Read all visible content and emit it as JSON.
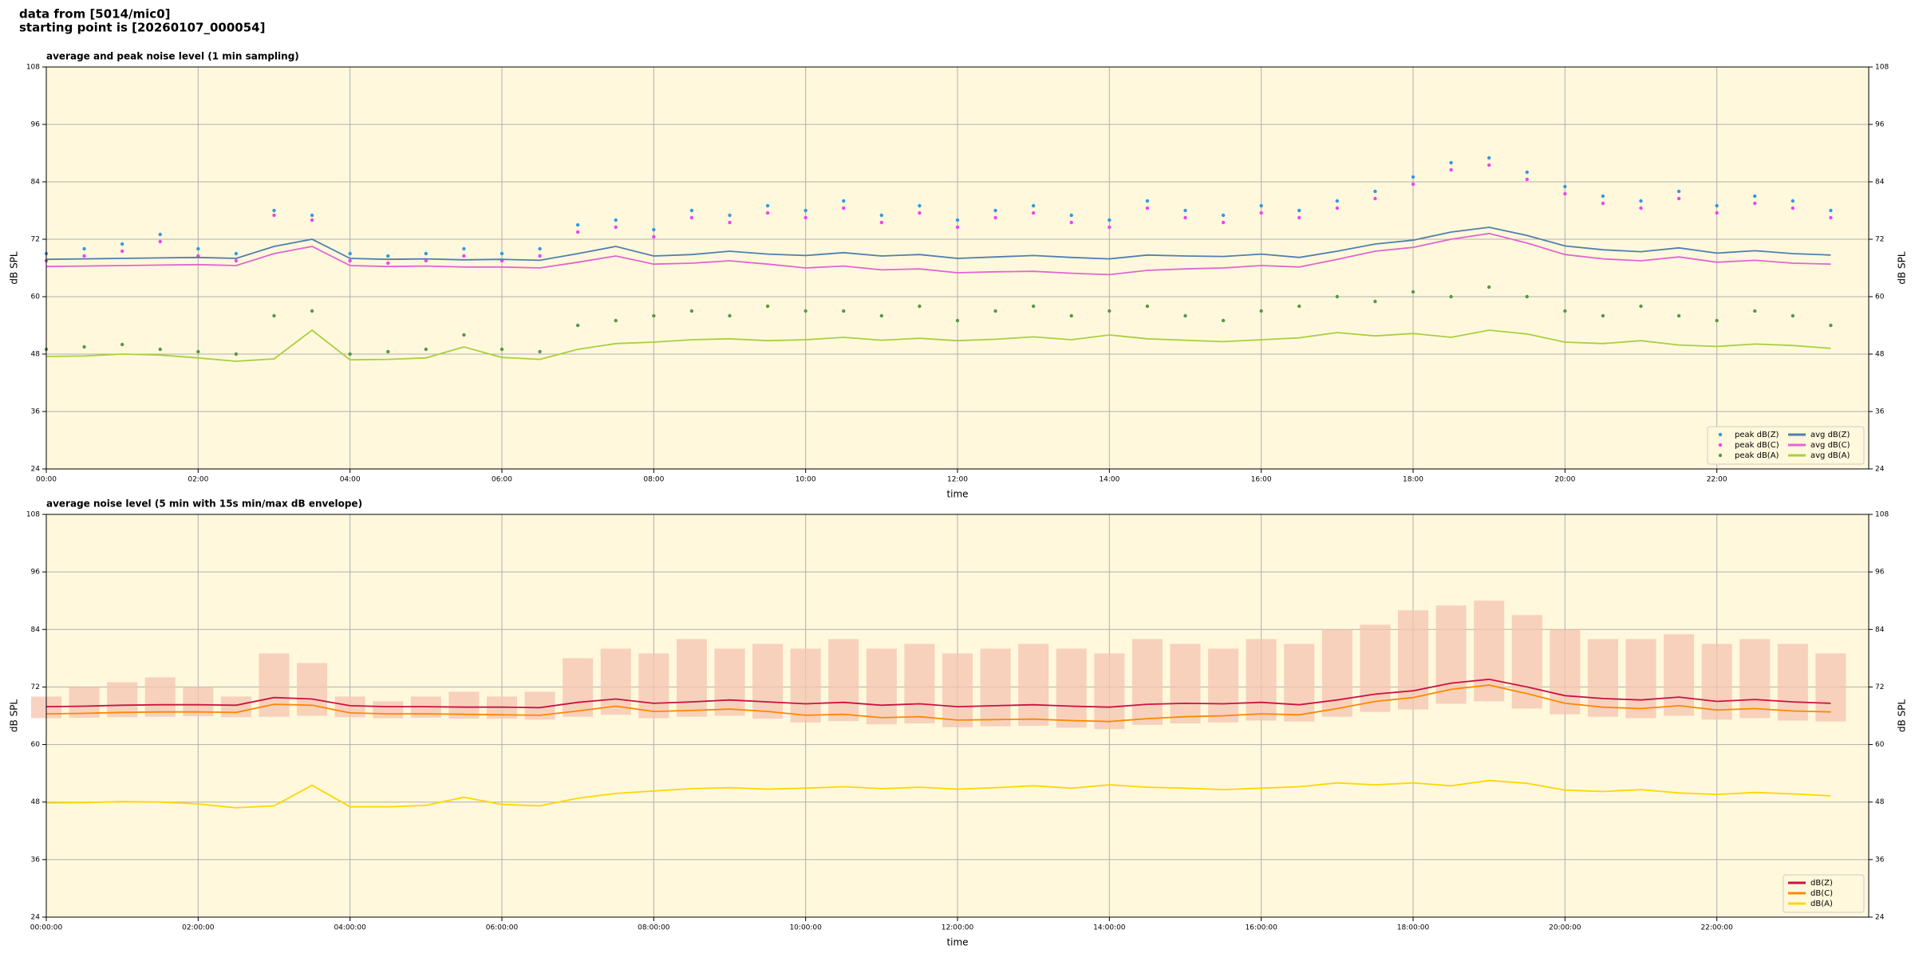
{
  "header": {
    "line1": "data from [5014/mic0]",
    "line2": "starting point is [20260107_000054]"
  },
  "chart_data": [
    {
      "type": "line",
      "title": "average and peak noise level (1 min sampling)",
      "x_label": "time",
      "y_label": "dB SPL",
      "background": "#fff8dc",
      "grid": true,
      "legend": "lower right",
      "xlim": [
        0,
        24
      ],
      "xticks": [
        {
          "value": 0,
          "label": "00:00"
        },
        {
          "value": 2,
          "label": "02:00"
        },
        {
          "value": 4,
          "label": "04:00"
        },
        {
          "value": 6,
          "label": "06:00"
        },
        {
          "value": 8,
          "label": "08:00"
        },
        {
          "value": 10,
          "label": "10:00"
        },
        {
          "value": 12,
          "label": "12:00"
        },
        {
          "value": 14,
          "label": "14:00"
        },
        {
          "value": 16,
          "label": "16:00"
        },
        {
          "value": 18,
          "label": "18:00"
        },
        {
          "value": 20,
          "label": "20:00"
        },
        {
          "value": 22,
          "label": "22:00"
        }
      ],
      "ylim": [
        24,
        108
      ],
      "yticks": [
        24,
        36,
        48,
        60,
        72,
        84,
        96,
        108
      ],
      "x": [
        0,
        0.5,
        1,
        1.5,
        2,
        2.5,
        3,
        3.5,
        4,
        4.5,
        5,
        5.5,
        6,
        6.5,
        7,
        7.5,
        8,
        8.5,
        9,
        9.5,
        10,
        10.5,
        11,
        11.5,
        12,
        12.5,
        13,
        13.5,
        14,
        14.5,
        15,
        15.5,
        16,
        16.5,
        17,
        17.5,
        18,
        18.5,
        19,
        19.5,
        20,
        20.5,
        21,
        21.5,
        22,
        22.5,
        23,
        23.5
      ],
      "series": [
        {
          "name": "peak dB(Z)",
          "type": "scatter",
          "color": "#3399dd",
          "values": [
            69,
            70,
            71,
            73,
            70,
            69,
            78,
            77,
            69,
            68.5,
            69,
            70,
            69,
            70,
            75,
            76,
            74,
            78,
            77,
            79,
            78,
            80,
            77,
            79,
            76,
            78,
            79,
            77,
            76,
            80,
            78,
            77,
            79,
            78,
            80,
            82,
            85,
            88,
            89,
            86,
            83,
            81,
            80,
            82,
            79,
            81,
            80,
            78
          ]
        },
        {
          "name": "peak dB(C)",
          "type": "scatter",
          "color": "#ee44ee",
          "values": [
            67.5,
            68.5,
            69.5,
            71.5,
            68.5,
            67.5,
            77,
            76,
            67.5,
            67,
            67.5,
            68.5,
            67.5,
            68.5,
            73.5,
            74.5,
            72.5,
            76.5,
            75.5,
            77.5,
            76.5,
            78.5,
            75.5,
            77.5,
            74.5,
            76.5,
            77.5,
            75.5,
            74.5,
            78.5,
            76.5,
            75.5,
            77.5,
            76.5,
            78.5,
            80.5,
            83.5,
            86.5,
            87.5,
            84.5,
            81.5,
            79.5,
            78.5,
            80.5,
            77.5,
            79.5,
            78.5,
            76.5
          ]
        },
        {
          "name": "peak dB(A)",
          "type": "scatter",
          "color": "#559944",
          "values": [
            49,
            49.5,
            50,
            49,
            48.5,
            48,
            56,
            57,
            48,
            48.5,
            49,
            52,
            49,
            48.5,
            54,
            55,
            56,
            57,
            56,
            58,
            57,
            57,
            56,
            58,
            55,
            57,
            58,
            56,
            57,
            58,
            56,
            55,
            57,
            58,
            60,
            59,
            61,
            60,
            62,
            60,
            57,
            56,
            58,
            56,
            55,
            57,
            56,
            54
          ]
        },
        {
          "name": "avg dB(Z)",
          "type": "line",
          "color": "#4f7fae",
          "values": [
            67.8,
            67.9,
            68.0,
            68.1,
            68.2,
            68.0,
            70.5,
            72.0,
            68.0,
            67.8,
            67.9,
            67.7,
            67.8,
            67.6,
            69.0,
            70.5,
            68.5,
            68.8,
            69.5,
            68.9,
            68.6,
            69.2,
            68.5,
            68.8,
            68.0,
            68.3,
            68.6,
            68.2,
            67.9,
            68.7,
            68.5,
            68.4,
            68.9,
            68.2,
            69.5,
            71.0,
            71.8,
            73.5,
            74.5,
            72.8,
            70.6,
            69.8,
            69.4,
            70.2,
            69.1,
            69.6,
            69.0,
            68.7
          ]
        },
        {
          "name": "avg dB(C)",
          "type": "line",
          "color": "#e066d0",
          "values": [
            66.3,
            66.4,
            66.5,
            66.6,
            66.7,
            66.5,
            69.0,
            70.5,
            66.5,
            66.3,
            66.4,
            66.2,
            66.2,
            66.0,
            67.2,
            68.5,
            66.8,
            67.0,
            67.5,
            66.8,
            66.0,
            66.4,
            65.6,
            65.8,
            65.0,
            65.2,
            65.3,
            64.9,
            64.6,
            65.5,
            65.8,
            66.0,
            66.5,
            66.2,
            67.8,
            69.5,
            70.3,
            72.0,
            73.2,
            71.2,
            68.8,
            67.9,
            67.5,
            68.3,
            67.2,
            67.6,
            67.0,
            66.8
          ]
        },
        {
          "name": "avg dB(A)",
          "type": "line",
          "color": "#a8d040",
          "values": [
            47.5,
            47.6,
            48.0,
            47.8,
            47.2,
            46.5,
            47.0,
            53.0,
            46.8,
            46.9,
            47.2,
            49.5,
            47.3,
            46.9,
            49.0,
            50.2,
            50.5,
            51.0,
            51.2,
            50.8,
            51.0,
            51.5,
            50.9,
            51.3,
            50.8,
            51.1,
            51.6,
            51.0,
            52.0,
            51.2,
            50.9,
            50.6,
            51.0,
            51.4,
            52.5,
            51.8,
            52.3,
            51.5,
            53.0,
            52.2,
            50.5,
            50.2,
            50.8,
            49.9,
            49.6,
            50.1,
            49.8,
            49.2
          ]
        }
      ]
    },
    {
      "type": "line",
      "title": "average noise level (5 min with 15s min/max dB envelope)",
      "x_label": "time",
      "y_label": "dB SPL",
      "background": "#fff8dc",
      "grid": true,
      "legend": "lower right",
      "xlim": [
        0,
        24
      ],
      "xticks": [
        {
          "value": 0,
          "label": "00:00:00"
        },
        {
          "value": 2,
          "label": "02:00:00"
        },
        {
          "value": 4,
          "label": "04:00:00"
        },
        {
          "value": 6,
          "label": "06:00:00"
        },
        {
          "value": 8,
          "label": "08:00:00"
        },
        {
          "value": 10,
          "label": "10:00:00"
        },
        {
          "value": 12,
          "label": "12:00:00"
        },
        {
          "value": 14,
          "label": "14:00:00"
        },
        {
          "value": 16,
          "label": "16:00:00"
        },
        {
          "value": 18,
          "label": "18:00:00"
        },
        {
          "value": 20,
          "label": "20:00:00"
        },
        {
          "value": 22,
          "label": "22:00:00"
        }
      ],
      "ylim": [
        24,
        108
      ],
      "yticks": [
        24,
        36,
        48,
        60,
        72,
        84,
        96,
        108
      ],
      "x": [
        0,
        0.5,
        1,
        1.5,
        2,
        2.5,
        3,
        3.5,
        4,
        4.5,
        5,
        5.5,
        6,
        6.5,
        7,
        7.5,
        8,
        8.5,
        9,
        9.5,
        10,
        10.5,
        11,
        11.5,
        12,
        12.5,
        13,
        13.5,
        14,
        14.5,
        15,
        15.5,
        16,
        16.5,
        17,
        17.5,
        18,
        18.5,
        19,
        19.5,
        20,
        20.5,
        21,
        21.5,
        22,
        22.5,
        23,
        23.5
      ],
      "envelope": {
        "color": "#f4c4b0",
        "high": [
          70,
          72,
          73,
          74,
          72,
          70,
          79,
          77,
          70,
          69,
          70,
          71,
          70,
          71,
          78,
          80,
          79,
          82,
          80,
          81,
          80,
          82,
          80,
          81,
          79,
          80,
          81,
          80,
          79,
          82,
          81,
          80,
          82,
          81,
          84,
          85,
          88,
          89,
          90,
          87,
          84,
          82,
          82,
          83,
          81,
          82,
          81,
          79
        ],
        "low": [
          65.5,
          65.6,
          65.7,
          65.8,
          65.9,
          65.7,
          65.8,
          66,
          65.7,
          65.5,
          65.6,
          65.4,
          65.4,
          65.2,
          65.8,
          66.2,
          65.5,
          65.8,
          66.0,
          65.4,
          64.6,
          64.9,
          64.2,
          64.4,
          63.6,
          63.8,
          63.9,
          63.5,
          63.2,
          64.1,
          64.4,
          64.6,
          65.0,
          64.8,
          65.8,
          66.8,
          67.3,
          68.5,
          69.0,
          67.5,
          66.3,
          65.8,
          65.5,
          66.0,
          65.2,
          65.5,
          65.0,
          64.8
        ]
      },
      "series": [
        {
          "name": "dB(Z)",
          "type": "line",
          "color": "#cc1144",
          "values": [
            67.9,
            68.0,
            68.2,
            68.3,
            68.3,
            68.2,
            69.8,
            69.5,
            68.1,
            67.9,
            67.9,
            67.8,
            67.8,
            67.7,
            68.8,
            69.5,
            68.6,
            68.9,
            69.3,
            68.9,
            68.5,
            68.8,
            68.2,
            68.5,
            67.9,
            68.1,
            68.3,
            68.0,
            67.8,
            68.4,
            68.6,
            68.5,
            68.8,
            68.3,
            69.3,
            70.5,
            71.2,
            72.8,
            73.6,
            72.0,
            70.2,
            69.6,
            69.3,
            69.9,
            69.0,
            69.4,
            68.9,
            68.6
          ]
        },
        {
          "name": "dB(C)",
          "type": "line",
          "color": "#ff8800",
          "values": [
            66.4,
            66.5,
            66.7,
            66.8,
            66.8,
            66.7,
            68.4,
            68.2,
            66.6,
            66.4,
            66.4,
            66.3,
            66.2,
            66.1,
            67.0,
            68.0,
            66.9,
            67.1,
            67.4,
            66.9,
            66.1,
            66.3,
            65.6,
            65.8,
            65.1,
            65.2,
            65.3,
            65.0,
            64.8,
            65.4,
            65.8,
            66.0,
            66.4,
            66.2,
            67.5,
            69.0,
            69.8,
            71.5,
            72.4,
            70.6,
            68.6,
            67.8,
            67.5,
            68.1,
            67.2,
            67.5,
            67.0,
            66.8
          ]
        },
        {
          "name": "dB(A)",
          "type": "line",
          "color": "#ffd700",
          "values": [
            47.8,
            47.9,
            48.1,
            48.0,
            47.6,
            46.8,
            47.2,
            51.5,
            47.0,
            47.0,
            47.3,
            49.0,
            47.5,
            47.2,
            48.8,
            49.8,
            50.3,
            50.8,
            51.0,
            50.7,
            50.9,
            51.2,
            50.8,
            51.1,
            50.7,
            51.0,
            51.4,
            50.9,
            51.6,
            51.1,
            50.9,
            50.6,
            50.9,
            51.2,
            52.0,
            51.6,
            52.0,
            51.4,
            52.5,
            51.9,
            50.5,
            50.2,
            50.6,
            49.9,
            49.6,
            50.0,
            49.7,
            49.3
          ]
        }
      ]
    }
  ]
}
